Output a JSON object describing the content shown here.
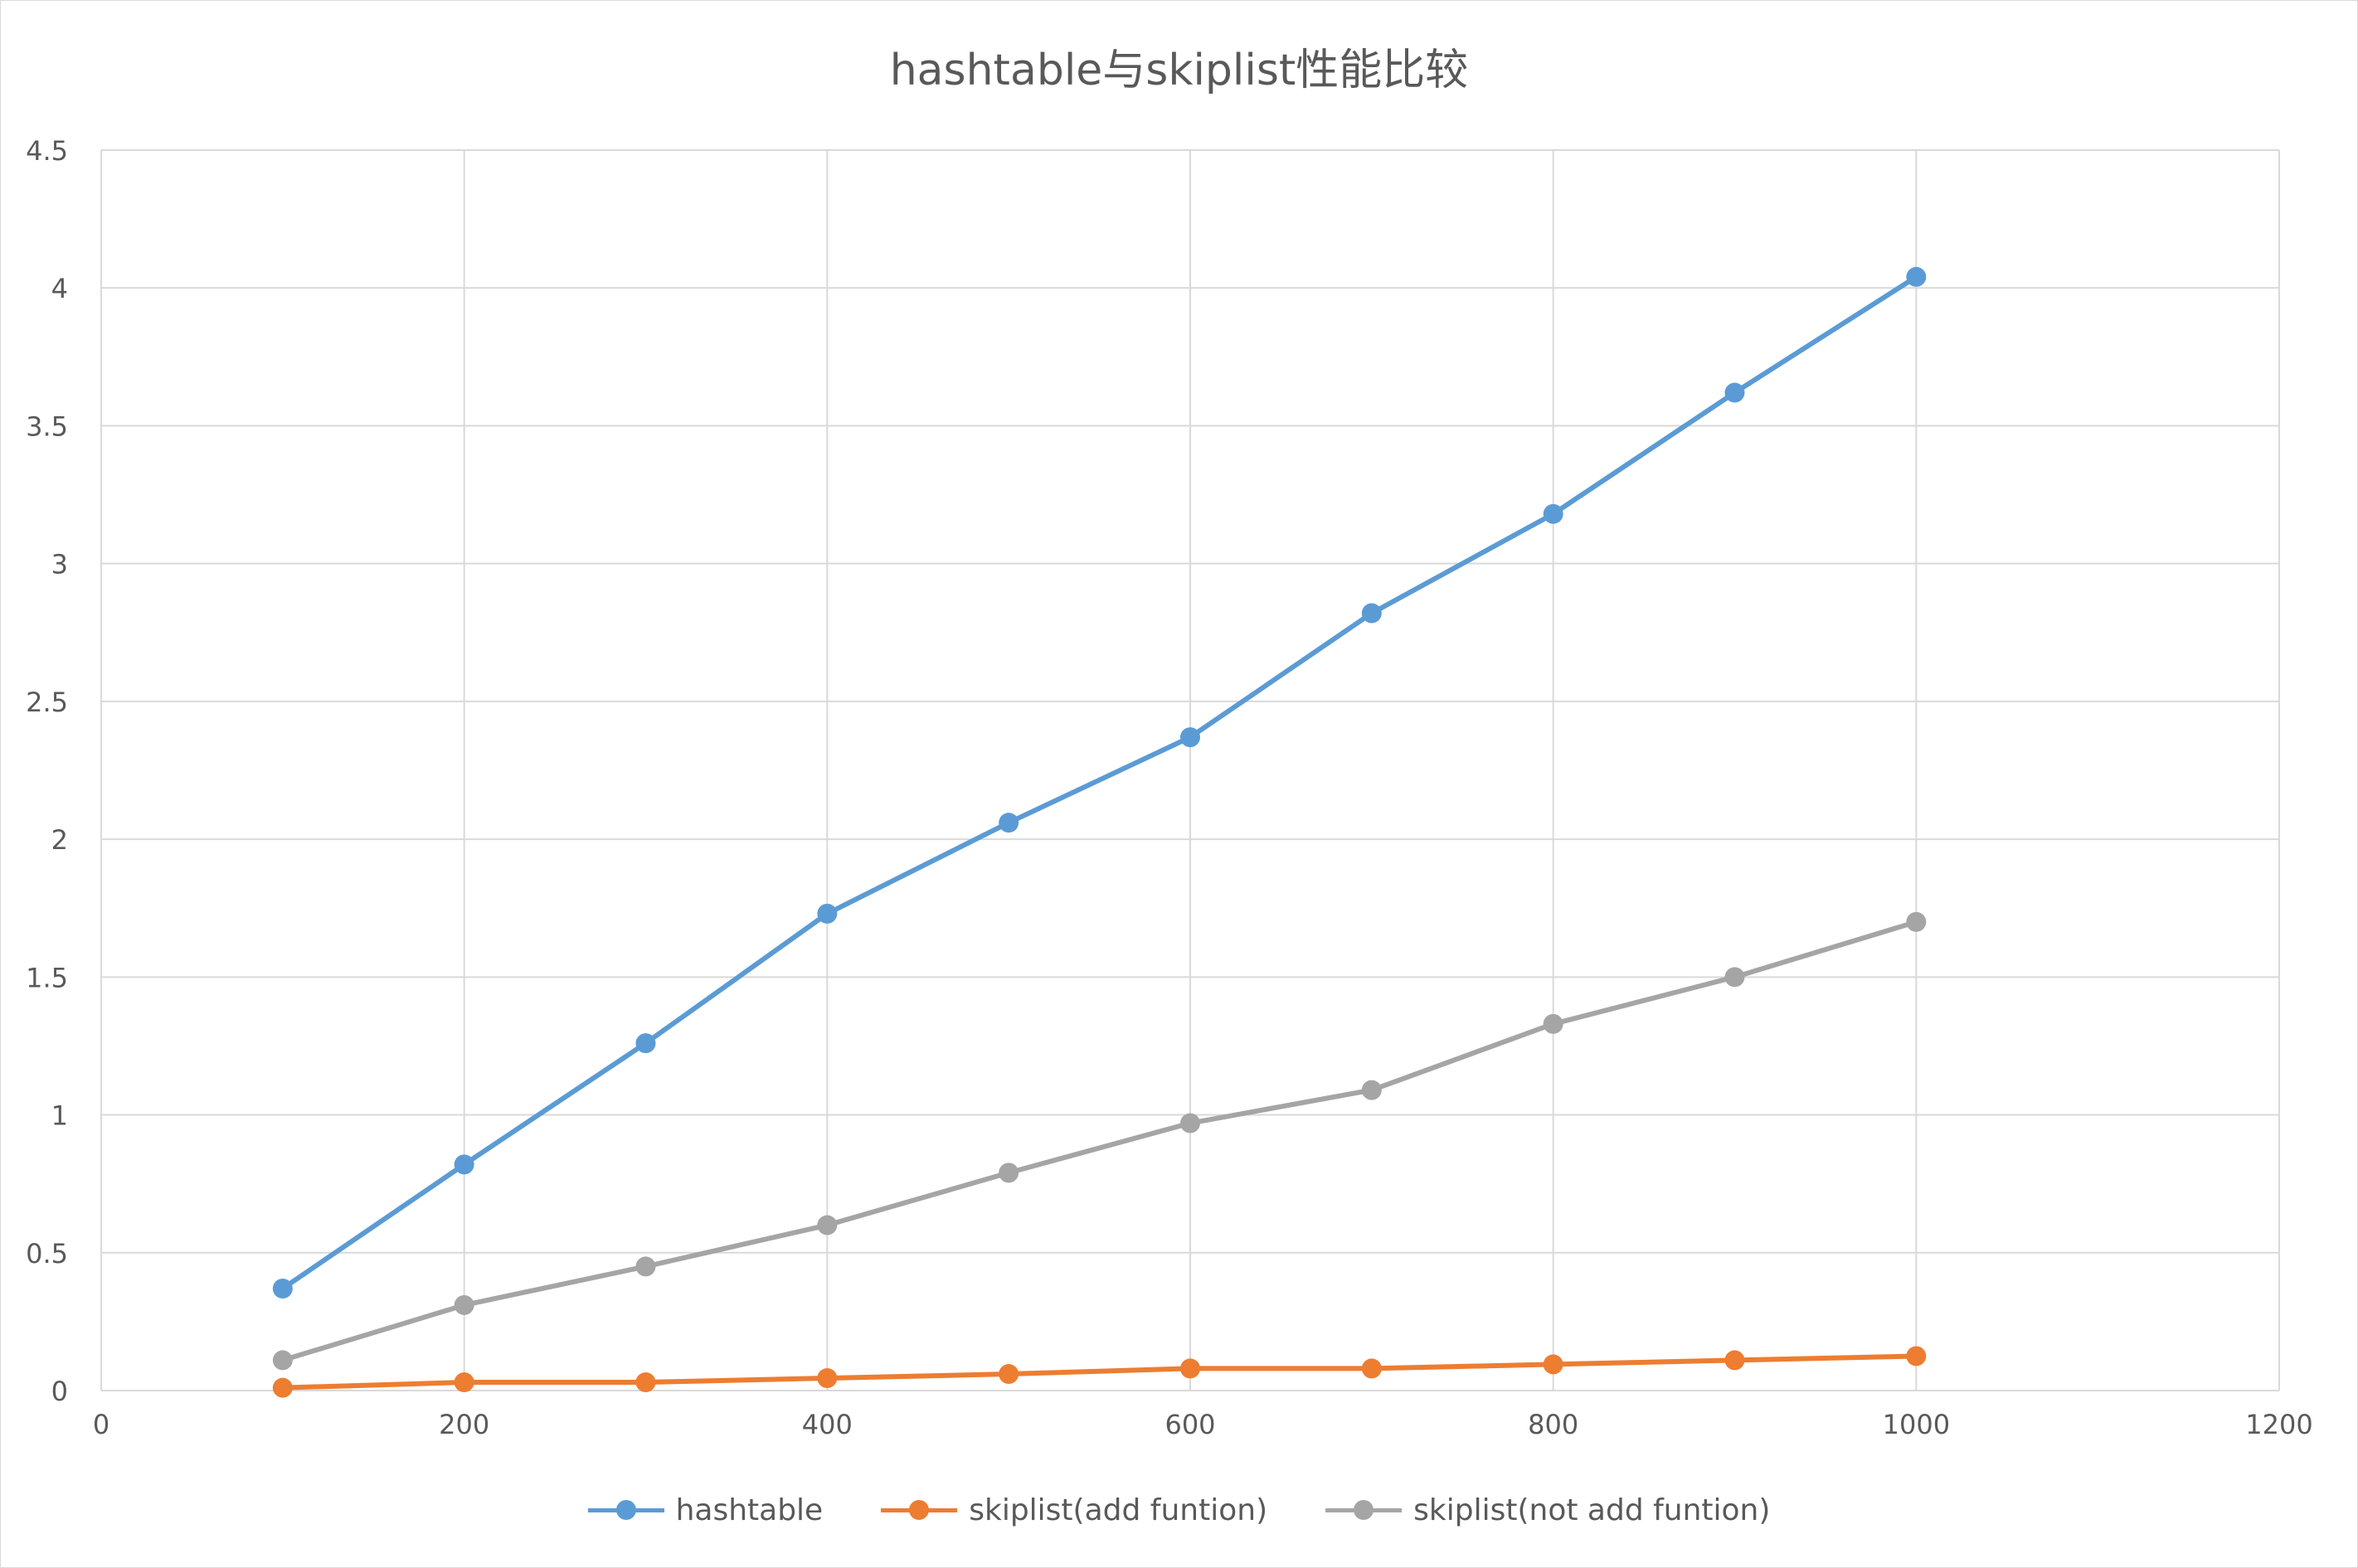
{
  "chart_data": {
    "type": "line",
    "title": "hashtable与skiplist性能比较",
    "xlabel": "",
    "ylabel": "",
    "xlim": [
      0,
      1200
    ],
    "ylim": [
      0,
      4.5
    ],
    "x_ticks": [
      "0",
      "200",
      "400",
      "600",
      "800",
      "1000",
      "1200"
    ],
    "y_ticks": [
      "0",
      "0.5",
      "1",
      "1.5",
      "2",
      "2.5",
      "3",
      "3.5",
      "4",
      "4.5"
    ],
    "grid": true,
    "legend_position": "bottom",
    "x": [
      100,
      200,
      300,
      400,
      500,
      600,
      700,
      800,
      900,
      1000
    ],
    "series": [
      {
        "name": "hashtable",
        "color": "#5b9bd5",
        "values": [
          0.37,
          0.82,
          1.26,
          1.73,
          2.06,
          2.37,
          2.82,
          3.18,
          3.62,
          4.04
        ]
      },
      {
        "name": "skiplist(add funtion)",
        "color": "#ed7d31",
        "values": [
          0.01,
          0.03,
          0.03,
          0.045,
          0.06,
          0.08,
          0.08,
          0.095,
          0.11,
          0.125
        ]
      },
      {
        "name": "skiplist(not add funtion)",
        "color": "#a5a5a5",
        "values": [
          0.11,
          0.31,
          0.45,
          0.6,
          0.79,
          0.97,
          1.09,
          1.33,
          1.5,
          1.7
        ]
      }
    ]
  }
}
